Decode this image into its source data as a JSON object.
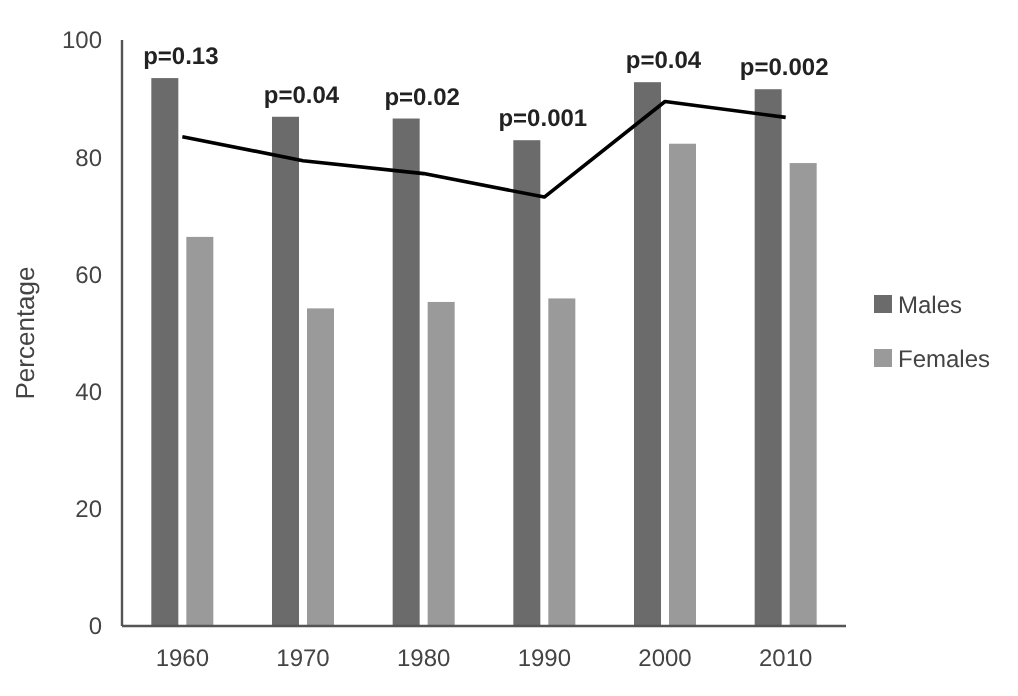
{
  "chart_data": {
    "type": "bar",
    "ylabel": "Percentage",
    "categories": [
      "1960",
      "1970",
      "1980",
      "1990",
      "2000",
      "2010"
    ],
    "series": [
      {
        "name": "Males",
        "color": "#6b6b6b",
        "values": [
          93.5,
          86.9,
          86.6,
          82.9,
          92.8,
          91.6
        ]
      },
      {
        "name": "Females",
        "color": "#9a9a9a",
        "values": [
          66.4,
          54.2,
          55.3,
          55.9,
          82.3,
          79.0
        ]
      },
      {
        "type": "line",
        "color": "#000000",
        "values": [
          83.5,
          79.4,
          77.2,
          73.2,
          89.5,
          86.8
        ]
      }
    ],
    "ylim": [
      0,
      100
    ],
    "yticks": [
      0,
      20,
      40,
      60,
      80,
      100
    ],
    "grid": false,
    "legend": "right",
    "marker": "none",
    "annotations": [
      {
        "text": "p=0.13",
        "x": "1960",
        "y": 93.5
      },
      {
        "text": "p=0.04",
        "x": "1970",
        "y": 86.9
      },
      {
        "text": "p=0.02",
        "x": "1980",
        "y": 86.6
      },
      {
        "text": "p=0.001",
        "x": "1990",
        "y": 82.9
      },
      {
        "text": "p=0.04",
        "x": "2000",
        "y": 92.8
      },
      {
        "text": "p=0.002",
        "x": "2010",
        "y": 91.6
      }
    ]
  }
}
